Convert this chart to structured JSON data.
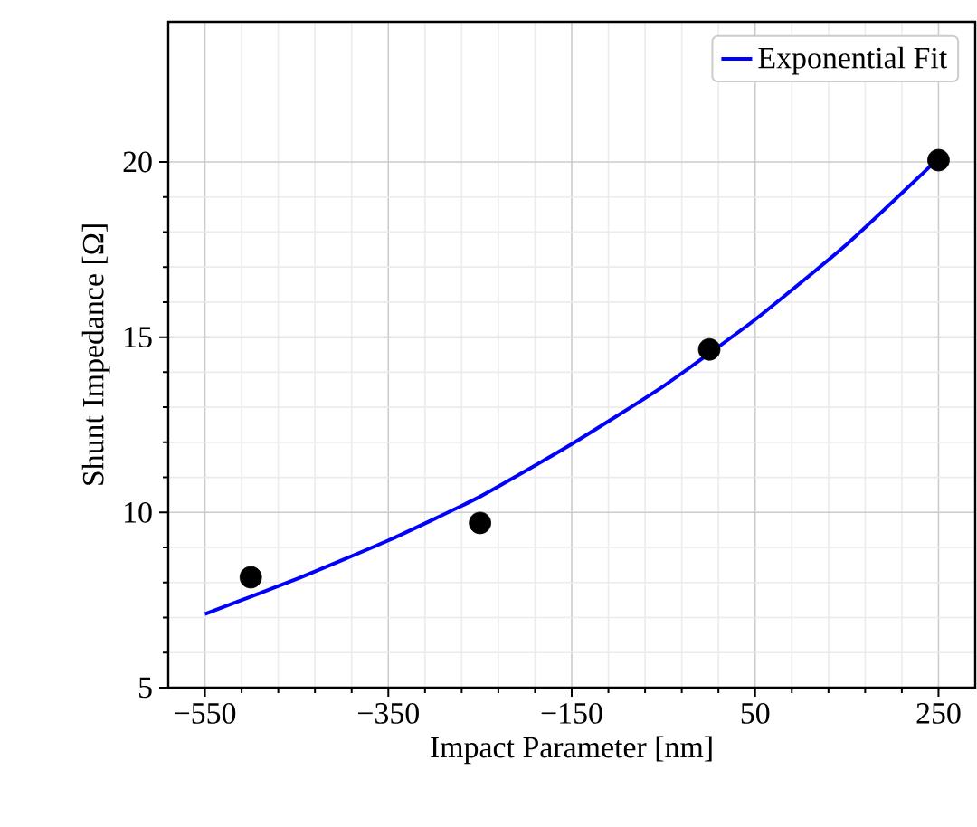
{
  "chart_data": {
    "type": "scatter",
    "xlabel": "Impact Parameter [nm]",
    "ylabel": "Shunt Impedance [Ω]",
    "xlim": [
      -590,
      290
    ],
    "ylim": [
      5,
      24
    ],
    "xticks": [
      {
        "value": -550,
        "label": "−550"
      },
      {
        "value": -350,
        "label": "−350"
      },
      {
        "value": -150,
        "label": "−150"
      },
      50,
      250
    ],
    "yticks": [
      5,
      10,
      15,
      20
    ],
    "grid": true,
    "legend": "top right",
    "series": [
      {
        "color": "#000000",
        "marker": "circle",
        "x": [
          -500,
          -250,
          0,
          250
        ],
        "values": [
          8.15,
          9.7,
          14.65,
          20.05
        ]
      },
      {
        "type": "line",
        "name": "Exponential Fit",
        "color": "#0000ff",
        "marker": "none",
        "line_style": "solid",
        "x": [
          -550,
          -450,
          -350,
          -250,
          -150,
          -50,
          50,
          150,
          250
        ],
        "values": [
          7.1,
          8.1,
          9.2,
          10.45,
          11.95,
          13.6,
          15.5,
          17.65,
          20.1
        ]
      }
    ]
  }
}
